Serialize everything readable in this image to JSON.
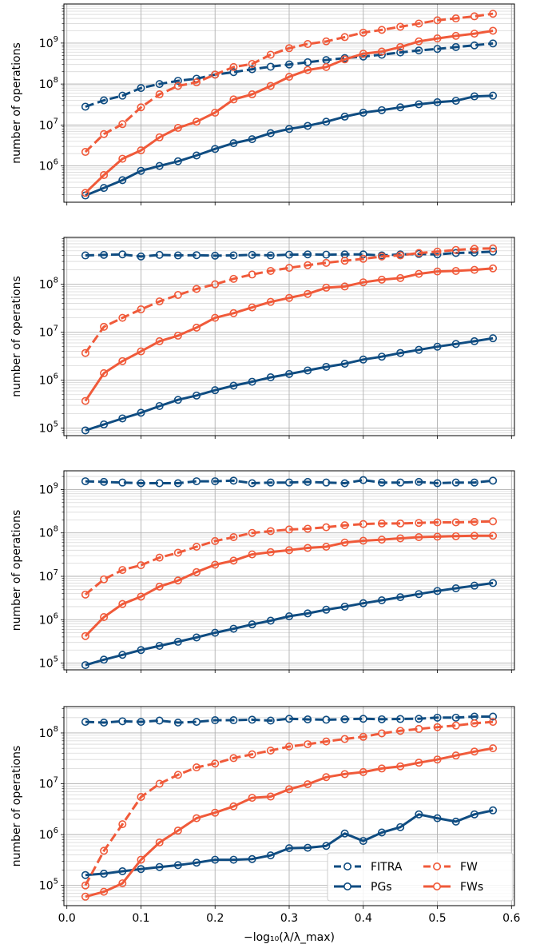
{
  "chart_data": [
    {
      "type": "line",
      "yscale": "log",
      "ylabel": "number of operations",
      "xlabel": "",
      "ylim": [
        130000,
        9000000000
      ],
      "y_major_ticks": [
        6,
        7,
        8,
        9
      ],
      "x": [
        0.025,
        0.05,
        0.075,
        0.1,
        0.125,
        0.15,
        0.175,
        0.2,
        0.225,
        0.25,
        0.275,
        0.3,
        0.325,
        0.35,
        0.375,
        0.4,
        0.425,
        0.45,
        0.475,
        0.5,
        0.525,
        0.55,
        0.575
      ],
      "series": [
        {
          "name": "FITRA",
          "color": "#0f4c81",
          "dashed": true,
          "values": [
            28000000,
            40000000,
            52000000,
            80000000,
            100000000,
            120000000,
            135000000,
            170000000,
            195000000,
            230000000,
            265000000,
            300000000,
            340000000,
            385000000,
            430000000,
            470000000,
            520000000,
            590000000,
            660000000,
            720000000,
            800000000,
            880000000,
            980000000
          ]
        },
        {
          "name": "PGs",
          "color": "#0f4c81",
          "dashed": false,
          "values": [
            190000,
            290000,
            450000,
            760000,
            1000000,
            1300000,
            1800000,
            2600000,
            3600000,
            4500000,
            6300000,
            8000000,
            9500000,
            12000000,
            16000000,
            20000000,
            23000000,
            27000000,
            32000000,
            36000000,
            39000000,
            50000000,
            52000000
          ]
        },
        {
          "name": "FW",
          "color": "#f05a3a",
          "dashed": true,
          "values": [
            2200000,
            6000000,
            10500000,
            27000000,
            56000000,
            90000000,
            110000000,
            170000000,
            260000000,
            310000000,
            520000000,
            750000000,
            950000000,
            1100000000,
            1400000000,
            1800000000,
            2100000000,
            2500000000,
            3000000000,
            3600000000,
            4000000000,
            4500000000,
            5200000000
          ]
        },
        {
          "name": "FWs",
          "color": "#f05a3a",
          "dashed": false,
          "values": [
            220000,
            600000,
            1500000,
            2400000,
            5000000,
            8500000,
            12000000,
            20000000,
            42000000,
            56000000,
            90000000,
            150000000,
            220000000,
            260000000,
            400000000,
            550000000,
            620000000,
            800000000,
            1100000000,
            1300000000,
            1500000000,
            1700000000,
            2000000000
          ]
        }
      ]
    },
    {
      "type": "line",
      "yscale": "log",
      "ylabel": "number of operations",
      "xlabel": "",
      "ylim": [
        70000,
        950000000
      ],
      "y_major_ticks": [
        5,
        6,
        7,
        8
      ],
      "x": [
        0.025,
        0.05,
        0.075,
        0.1,
        0.125,
        0.15,
        0.175,
        0.2,
        0.225,
        0.25,
        0.275,
        0.3,
        0.325,
        0.35,
        0.375,
        0.4,
        0.425,
        0.45,
        0.475,
        0.5,
        0.525,
        0.55,
        0.575
      ],
      "series": [
        {
          "name": "FITRA",
          "color": "#0f4c81",
          "dashed": true,
          "values": [
            400000000,
            410000000,
            420000000,
            380000000,
            410000000,
            400000000,
            405000000,
            395000000,
            400000000,
            410000000,
            400000000,
            415000000,
            420000000,
            415000000,
            420000000,
            420000000,
            400000000,
            420000000,
            430000000,
            420000000,
            450000000,
            460000000,
            480000000
          ]
        },
        {
          "name": "PGs",
          "color": "#0f4c81",
          "dashed": false,
          "values": [
            90000,
            120000,
            160000,
            210000,
            290000,
            390000,
            480000,
            620000,
            770000,
            930000,
            1150000,
            1350000,
            1600000,
            1900000,
            2200000,
            2700000,
            3100000,
            3700000,
            4300000,
            5000000,
            5700000,
            6500000,
            7500000
          ]
        },
        {
          "name": "FW",
          "color": "#f05a3a",
          "dashed": true,
          "values": [
            3700000,
            13000000,
            20000000,
            30000000,
            44000000,
            60000000,
            80000000,
            100000000,
            130000000,
            160000000,
            190000000,
            220000000,
            250000000,
            280000000,
            310000000,
            340000000,
            380000000,
            400000000,
            450000000,
            480000000,
            520000000,
            550000000,
            560000000
          ]
        },
        {
          "name": "FWs",
          "color": "#f05a3a",
          "dashed": false,
          "values": [
            370000,
            1400000,
            2500000,
            4000000,
            6500000,
            8500000,
            12500000,
            20000000,
            25000000,
            33000000,
            43000000,
            52000000,
            63000000,
            85000000,
            90000000,
            110000000,
            125000000,
            135000000,
            165000000,
            185000000,
            190000000,
            200000000,
            215000000
          ]
        }
      ]
    },
    {
      "type": "line",
      "yscale": "log",
      "ylabel": "number of operations",
      "xlabel": "",
      "ylim": [
        70000,
        2700000000
      ],
      "y_major_ticks": [
        5,
        6,
        7,
        8,
        9
      ],
      "x": [
        0.025,
        0.05,
        0.075,
        0.1,
        0.125,
        0.15,
        0.175,
        0.2,
        0.225,
        0.25,
        0.275,
        0.3,
        0.325,
        0.35,
        0.375,
        0.4,
        0.425,
        0.45,
        0.475,
        0.5,
        0.525,
        0.55,
        0.575
      ],
      "series": [
        {
          "name": "FITRA",
          "color": "#0f4c81",
          "dashed": true,
          "values": [
            1550000000,
            1500000000,
            1450000000,
            1400000000,
            1400000000,
            1400000000,
            1550000000,
            1550000000,
            1600000000,
            1400000000,
            1450000000,
            1450000000,
            1500000000,
            1450000000,
            1400000000,
            1650000000,
            1450000000,
            1450000000,
            1500000000,
            1400000000,
            1450000000,
            1450000000,
            1600000000
          ]
        },
        {
          "name": "PGs",
          "color": "#0f4c81",
          "dashed": false,
          "values": [
            90000,
            120000,
            155000,
            200000,
            250000,
            310000,
            390000,
            500000,
            620000,
            780000,
            950000,
            1200000,
            1400000,
            1700000,
            2000000,
            2400000,
            2800000,
            3300000,
            3900000,
            4600000,
            5300000,
            6100000,
            7000000
          ]
        },
        {
          "name": "FW",
          "color": "#f05a3a",
          "dashed": true,
          "values": [
            3800000,
            8500000,
            14000000,
            18000000,
            27000000,
            35000000,
            48000000,
            65000000,
            80000000,
            100000000,
            110000000,
            120000000,
            125000000,
            135000000,
            150000000,
            160000000,
            165000000,
            165000000,
            170000000,
            175000000,
            175000000,
            180000000,
            185000000
          ]
        },
        {
          "name": "FWs",
          "color": "#f05a3a",
          "dashed": false,
          "values": [
            420000,
            1150000,
            2300000,
            3400000,
            5800000,
            8000000,
            12500000,
            18500000,
            23000000,
            32000000,
            36000000,
            40000000,
            45000000,
            48000000,
            60000000,
            66000000,
            70000000,
            75000000,
            80000000,
            82000000,
            84000000,
            86000000,
            86000000
          ]
        }
      ]
    },
    {
      "type": "line",
      "yscale": "log",
      "ylabel": "number of operations",
      "xlabel": "−log₁₀(λ/λ_max)",
      "xticks": [
        0.0,
        0.1,
        0.2,
        0.3,
        0.4,
        0.5,
        0.6
      ],
      "xlim": [
        -0.004,
        0.604
      ],
      "ylim": [
        40000,
        330000000
      ],
      "y_major_ticks": [
        5,
        6,
        7,
        8
      ],
      "x": [
        0.025,
        0.05,
        0.075,
        0.1,
        0.125,
        0.15,
        0.175,
        0.2,
        0.225,
        0.25,
        0.275,
        0.3,
        0.325,
        0.35,
        0.375,
        0.4,
        0.425,
        0.45,
        0.475,
        0.5,
        0.525,
        0.55,
        0.575
      ],
      "legend": {
        "position": "lower-right",
        "columns": 2
      },
      "series": [
        {
          "name": "FITRA",
          "color": "#0f4c81",
          "dashed": true,
          "values": [
            165000000,
            160000000,
            170000000,
            165000000,
            175000000,
            160000000,
            165000000,
            178000000,
            178000000,
            182000000,
            175000000,
            190000000,
            185000000,
            182000000,
            186000000,
            190000000,
            186000000,
            188000000,
            190000000,
            200000000,
            200000000,
            210000000,
            210000000
          ]
        },
        {
          "name": "PGs",
          "color": "#0f4c81",
          "dashed": false,
          "values": [
            160000,
            170000,
            190000,
            210000,
            230000,
            250000,
            280000,
            320000,
            320000,
            330000,
            390000,
            540000,
            550000,
            600000,
            1050000,
            750000,
            1100000,
            1400000,
            2500000,
            2100000,
            1800000,
            2500000,
            3000000
          ]
        },
        {
          "name": "FW",
          "color": "#f05a3a",
          "dashed": true,
          "values": [
            100000,
            480000,
            1600000,
            5500000,
            10000000,
            15000000,
            21000000,
            25000000,
            32000000,
            38000000,
            45000000,
            54000000,
            60000000,
            68000000,
            76000000,
            84000000,
            98000000,
            110000000,
            120000000,
            130000000,
            140000000,
            155000000,
            165000000
          ]
        },
        {
          "name": "FWs",
          "color": "#f05a3a",
          "dashed": false,
          "values": [
            60000,
            75000,
            110000,
            320000,
            700000,
            1200000,
            2100000,
            2700000,
            3600000,
            5300000,
            5600000,
            7800000,
            9800000,
            13500000,
            15500000,
            17000000,
            20000000,
            22000000,
            26000000,
            30000000,
            36000000,
            43000000,
            50000000
          ]
        }
      ]
    }
  ]
}
